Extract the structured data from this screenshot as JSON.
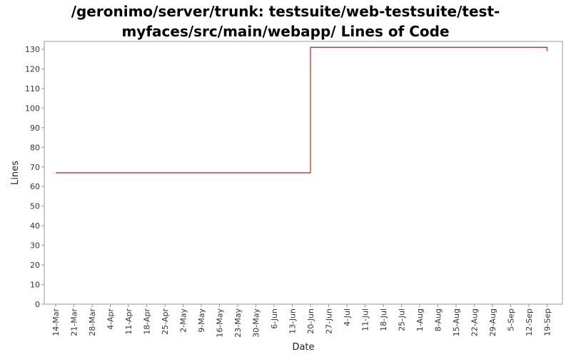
{
  "chart_data": {
    "type": "line",
    "title_lines": [
      "/geronimo/server/trunk: testsuite/web-testsuite/test-",
      "myfaces/src/main/webapp/ Lines of Code"
    ],
    "xlabel": "Date",
    "ylabel": "Lines",
    "x_tick_labels": [
      "14-Mar",
      "21-Mar",
      "28-Mar",
      "4-Apr",
      "11-Apr",
      "18-Apr",
      "25-Apr",
      "2-May",
      "9-May",
      "16-May",
      "23-May",
      "30-May",
      "6-Jun",
      "13-Jun",
      "20-Jun",
      "27-Jun",
      "4-Jul",
      "11-Jul",
      "18-Jul",
      "25-Jul",
      "1-Aug",
      "8-Aug",
      "15-Aug",
      "22-Aug",
      "29-Aug",
      "5-Sep",
      "12-Sep",
      "19-Sep"
    ],
    "y_ticks": [
      0,
      10,
      20,
      30,
      40,
      50,
      60,
      70,
      80,
      90,
      100,
      110,
      120,
      130
    ],
    "ylim": [
      0,
      134
    ],
    "grid": false,
    "line_color": "#b22222",
    "series": [
      {
        "step": true,
        "x": [
          "14-Mar",
          "20-Jun",
          "19-Sep",
          "19-Sep"
        ],
        "values": [
          67,
          131,
          131,
          129
        ]
      }
    ]
  }
}
